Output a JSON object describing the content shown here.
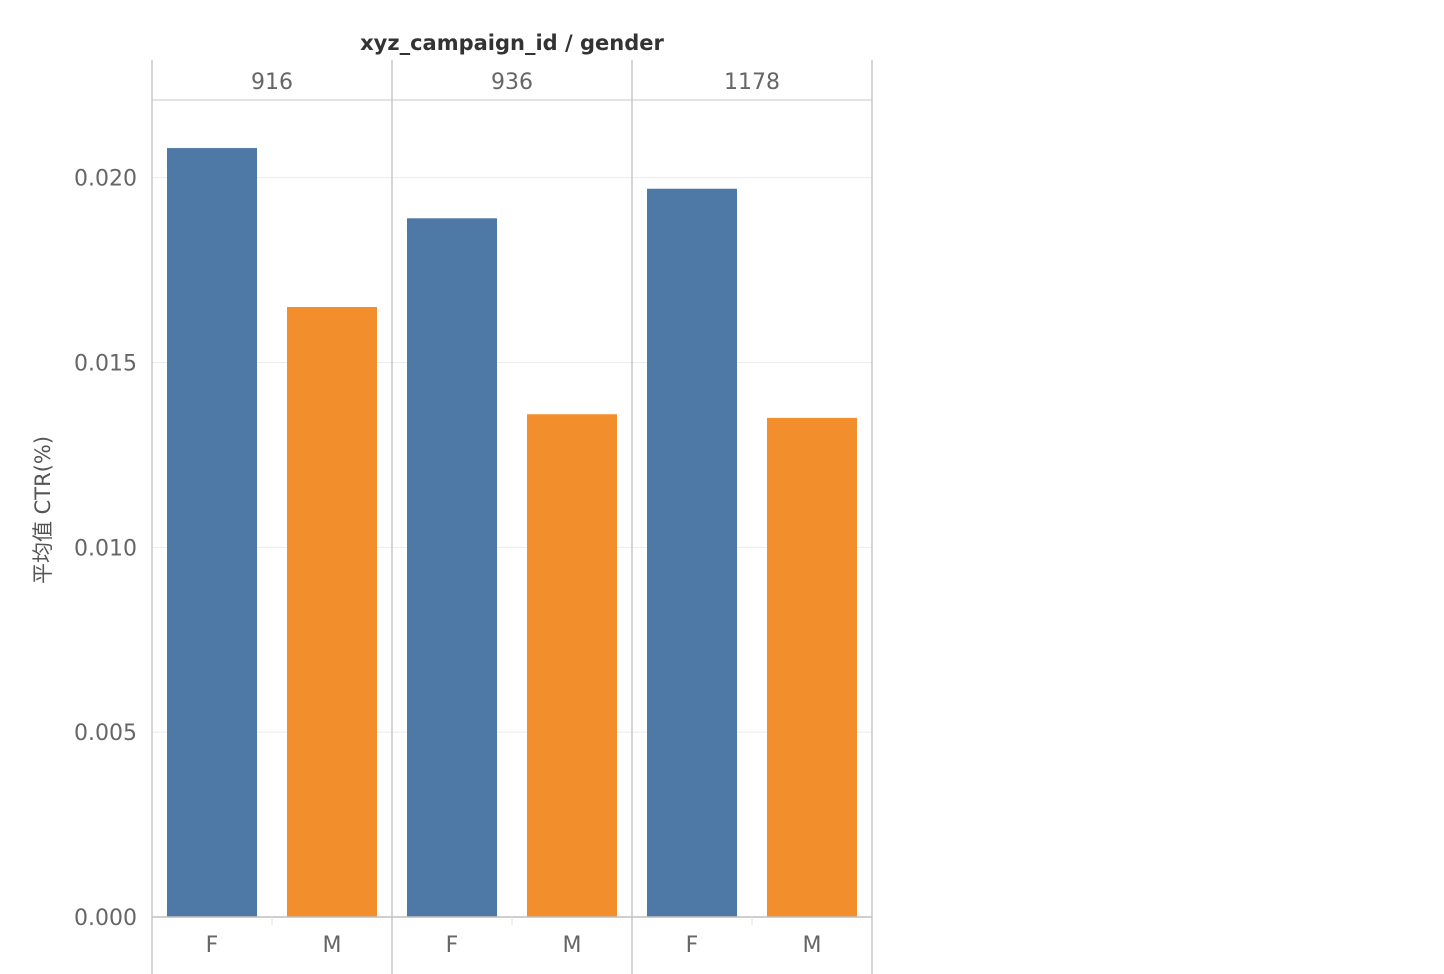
{
  "chart_data": {
    "type": "bar",
    "title": "xyz_campaign_id / gender",
    "ylabel": "平均值 CTR(%)",
    "xlabel": "",
    "ylim": [
      0,
      0.0221
    ],
    "yticks": [
      "0.000",
      "0.005",
      "0.010",
      "0.015",
      "0.020"
    ],
    "ytick_values": [
      0,
      0.005,
      0.01,
      0.015,
      0.02
    ],
    "grid": true,
    "facets": [
      {
        "label": "916",
        "categories": [
          "F",
          "M"
        ],
        "values": [
          0.0208,
          0.0165
        ]
      },
      {
        "label": "936",
        "categories": [
          "F",
          "M"
        ],
        "values": [
          0.0189,
          0.0136
        ]
      },
      {
        "label": "1178",
        "categories": [
          "F",
          "M"
        ],
        "values": [
          0.0197,
          0.0135
        ]
      }
    ],
    "colors": {
      "F": "#4e79a7",
      "M": "#f28e2b"
    },
    "grid_color": "#ececec",
    "border_color": "#c8c8c8"
  }
}
